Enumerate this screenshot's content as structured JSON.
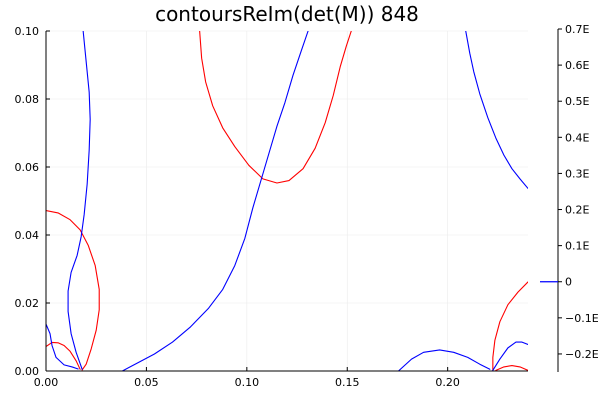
{
  "chart_data": {
    "type": "line",
    "title": "contoursReIm(det(M)) 848",
    "xlabel": "",
    "ylabel": "",
    "xlim": [
      0,
      0.24
    ],
    "ylim": [
      0,
      0.1
    ],
    "grid": true,
    "x_ticks": [
      {
        "value": 0.0,
        "label": "0.00"
      },
      {
        "value": 0.05,
        "label": "0.05"
      },
      {
        "value": 0.1,
        "label": "0.10"
      },
      {
        "value": 0.15,
        "label": "0.15"
      },
      {
        "value": 0.2,
        "label": "0.20"
      }
    ],
    "y_ticks": [
      {
        "value": 0.0,
        "label": "0.00"
      },
      {
        "value": 0.02,
        "label": "0.02"
      },
      {
        "value": 0.04,
        "label": "0.04"
      },
      {
        "value": 0.06,
        "label": "0.06"
      },
      {
        "value": 0.08,
        "label": "0.08"
      },
      {
        "value": 0.1,
        "label": "0.10"
      }
    ],
    "colorbar": {
      "labels": [
        "0.7E",
        "0.6E",
        "0.5E",
        "0.4E",
        "0.3E",
        "0.2E",
        "0.1E",
        "0",
        "−0.1E",
        "−0.2E"
      ],
      "min": -0.25,
      "max": 0.7,
      "highlight_value": 0,
      "highlight_color": "#0000ff"
    },
    "colors": {
      "re": "#ff0000",
      "im": "#0000ff",
      "grid": "#ebebeb"
    },
    "series": [
      {
        "kind": "re",
        "points": [
          [
            0.0,
            0.0072
          ],
          [
            0.003,
            0.0084
          ],
          [
            0.006,
            0.0083
          ],
          [
            0.009,
            0.0075
          ],
          [
            0.012,
            0.0058
          ],
          [
            0.015,
            0.003
          ],
          [
            0.017,
            0.0005
          ]
        ]
      },
      {
        "kind": "re",
        "points": [
          [
            0.0,
            0.0472
          ],
          [
            0.006,
            0.0465
          ],
          [
            0.012,
            0.0445
          ],
          [
            0.017,
            0.0415
          ],
          [
            0.021,
            0.037
          ],
          [
            0.0245,
            0.031
          ],
          [
            0.0265,
            0.024
          ],
          [
            0.0265,
            0.018
          ],
          [
            0.025,
            0.012
          ],
          [
            0.0225,
            0.0065
          ],
          [
            0.02,
            0.002
          ],
          [
            0.018,
            0.0003
          ]
        ]
      },
      {
        "kind": "re",
        "points": [
          [
            0.0765,
            0.1
          ],
          [
            0.0775,
            0.092
          ],
          [
            0.0795,
            0.085
          ],
          [
            0.083,
            0.078
          ],
          [
            0.088,
            0.0715
          ],
          [
            0.094,
            0.066
          ],
          [
            0.101,
            0.0605
          ],
          [
            0.108,
            0.0565
          ],
          [
            0.115,
            0.0553
          ],
          [
            0.121,
            0.056
          ],
          [
            0.128,
            0.0595
          ],
          [
            0.134,
            0.0655
          ],
          [
            0.139,
            0.073
          ],
          [
            0.143,
            0.081
          ],
          [
            0.1465,
            0.0895
          ],
          [
            0.1495,
            0.0955
          ],
          [
            0.152,
            0.1
          ]
        ]
      },
      {
        "kind": "re",
        "points": [
          [
            0.2225,
            0.0002
          ],
          [
            0.2225,
            0.004
          ],
          [
            0.2235,
            0.009
          ],
          [
            0.226,
            0.0145
          ],
          [
            0.23,
            0.0195
          ],
          [
            0.235,
            0.0232
          ],
          [
            0.24,
            0.0262
          ]
        ]
      },
      {
        "kind": "re",
        "points": [
          [
            0.224,
            0.0002
          ],
          [
            0.228,
            0.0012
          ],
          [
            0.232,
            0.0016
          ],
          [
            0.236,
            0.0012
          ],
          [
            0.24,
            0.0002
          ]
        ]
      },
      {
        "kind": "im",
        "points": [
          [
            0.0,
            0.0138
          ],
          [
            0.002,
            0.011
          ],
          [
            0.003,
            0.0075
          ],
          [
            0.005,
            0.004
          ],
          [
            0.009,
            0.0018
          ],
          [
            0.013,
            0.0012
          ],
          [
            0.016,
            0.0006
          ]
        ]
      },
      {
        "kind": "im",
        "points": [
          [
            0.018,
            0.0005
          ],
          [
            0.015,
            0.0055
          ],
          [
            0.0125,
            0.011
          ],
          [
            0.011,
            0.0175
          ],
          [
            0.011,
            0.0235
          ],
          [
            0.0125,
            0.029
          ],
          [
            0.0155,
            0.034
          ],
          [
            0.0175,
            0.0395
          ],
          [
            0.019,
            0.046
          ],
          [
            0.0205,
            0.055
          ],
          [
            0.0215,
            0.065
          ],
          [
            0.022,
            0.074
          ],
          [
            0.0215,
            0.082
          ],
          [
            0.0205,
            0.088
          ],
          [
            0.0195,
            0.094
          ],
          [
            0.0185,
            0.1
          ]
        ]
      },
      {
        "kind": "im",
        "points": [
          [
            0.038,
            0.0
          ],
          [
            0.046,
            0.0025
          ],
          [
            0.054,
            0.005
          ],
          [
            0.063,
            0.0085
          ],
          [
            0.072,
            0.013
          ],
          [
            0.081,
            0.0185
          ],
          [
            0.088,
            0.024
          ],
          [
            0.094,
            0.031
          ],
          [
            0.099,
            0.039
          ],
          [
            0.103,
            0.048
          ],
          [
            0.107,
            0.056
          ],
          [
            0.111,
            0.064
          ],
          [
            0.115,
            0.072
          ],
          [
            0.119,
            0.079
          ],
          [
            0.123,
            0.087
          ],
          [
            0.127,
            0.094
          ],
          [
            0.1305,
            0.1
          ]
        ]
      },
      {
        "kind": "im",
        "points": [
          [
            0.1755,
            0.0
          ],
          [
            0.182,
            0.0035
          ],
          [
            0.188,
            0.0055
          ],
          [
            0.196,
            0.0062
          ],
          [
            0.203,
            0.0055
          ],
          [
            0.21,
            0.004
          ],
          [
            0.216,
            0.002
          ],
          [
            0.221,
            0.0005
          ]
        ]
      },
      {
        "kind": "im",
        "points": [
          [
            0.2225,
            0.0002
          ],
          [
            0.226,
            0.0035
          ],
          [
            0.23,
            0.0068
          ],
          [
            0.234,
            0.0085
          ],
          [
            0.237,
            0.0085
          ],
          [
            0.24,
            0.0078
          ]
        ]
      },
      {
        "kind": "im",
        "points": [
          [
            0.209,
            0.1
          ],
          [
            0.211,
            0.0935
          ],
          [
            0.213,
            0.088
          ],
          [
            0.216,
            0.0815
          ],
          [
            0.22,
            0.0745
          ],
          [
            0.224,
            0.0685
          ],
          [
            0.228,
            0.0635
          ],
          [
            0.232,
            0.0595
          ],
          [
            0.236,
            0.0565
          ],
          [
            0.24,
            0.0537
          ]
        ]
      }
    ]
  }
}
